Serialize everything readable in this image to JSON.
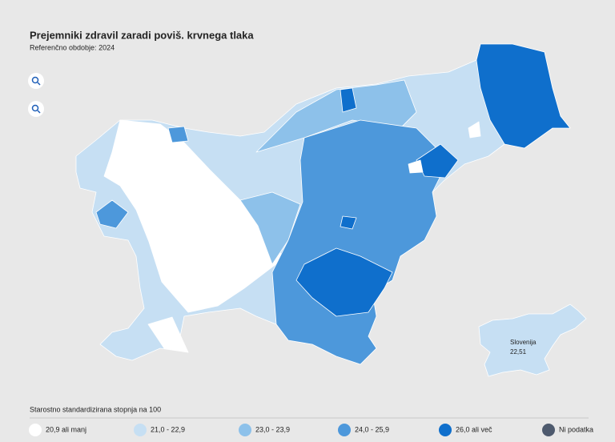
{
  "header": {
    "title": "Prejemniki zdravil zaradi poviš. krvnega tlaka",
    "subtitle": "Referenčno obdobje: 2024"
  },
  "inset": {
    "name": "Slovenija",
    "value": "22,51"
  },
  "legend": {
    "title": "Starostno standardizirana stopnja na 100",
    "items": [
      {
        "label": "20,9 ali manj",
        "color": "#ffffff"
      },
      {
        "label": "21,0 - 22,9",
        "color": "#c6dff3"
      },
      {
        "label": "23,0 - 23,9",
        "color": "#8dc1ea"
      },
      {
        "label": "24,0 - 25,9",
        "color": "#4d98db"
      },
      {
        "label": "26,0 ali več",
        "color": "#0f6fcc"
      },
      {
        "label": "Ni podatka",
        "color": "#4e5a6e"
      }
    ]
  }
}
